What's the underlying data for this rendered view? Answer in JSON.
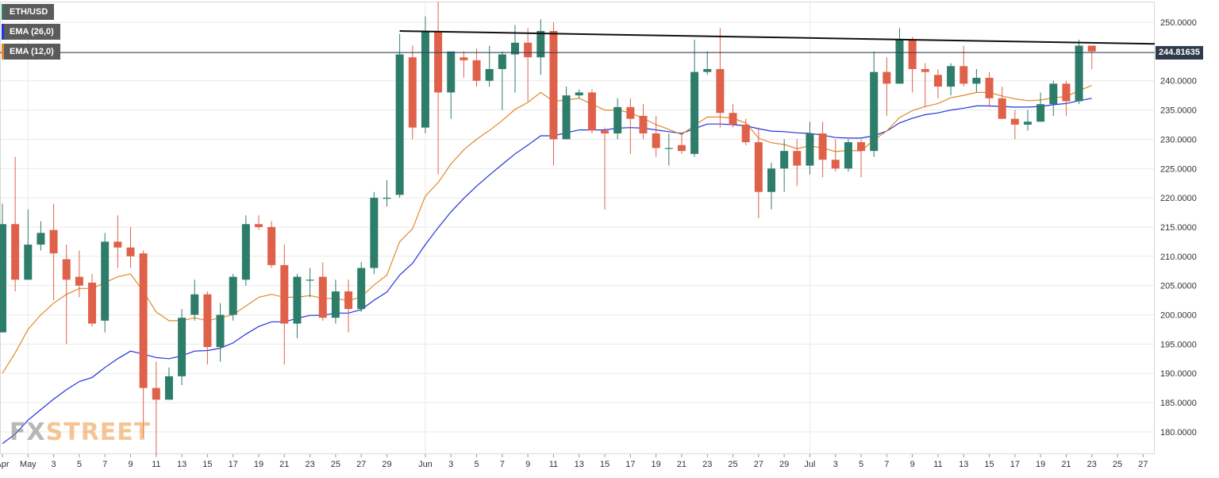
{
  "legend": [
    {
      "label": "ETH/USD",
      "color": "#2e7d6a"
    },
    {
      "label": "EMA (26,0)",
      "color": "#2233dd"
    },
    {
      "label": "EMA (12,0)",
      "color": "#e08a2a"
    }
  ],
  "watermark": {
    "left": "FX",
    "right": "STREET"
  },
  "chart_data": {
    "type": "candlestick",
    "symbol": "ETH/USD",
    "title": "",
    "ylim": [
      175.5,
      253.5
    ],
    "grid": true,
    "legend_position": "top-left",
    "last_price_label": "244.81635",
    "last_price": 244.81635,
    "colors": {
      "up": "#2e7d6a",
      "down": "#e0614a",
      "ema26": "#2233dd",
      "ema12": "#e08a2a",
      "trendline": "#111111",
      "price_line": "#2f3b4c"
    },
    "y_ticks": [
      "250.0000",
      "245.0000",
      "240.0000",
      "235.0000",
      "230.0000",
      "225.0000",
      "220.0000",
      "215.0000",
      "210.0000",
      "205.0000",
      "200.0000",
      "195.0000",
      "190.0000",
      "185.0000",
      "180.0000"
    ],
    "x_ticks": [
      {
        "i": 0,
        "label": "Apr"
      },
      {
        "i": 2,
        "label": "May"
      },
      {
        "i": 4,
        "label": "3"
      },
      {
        "i": 6,
        "label": "5"
      },
      {
        "i": 8,
        "label": "7"
      },
      {
        "i": 10,
        "label": "9"
      },
      {
        "i": 12,
        "label": "11"
      },
      {
        "i": 14,
        "label": "13"
      },
      {
        "i": 16,
        "label": "15"
      },
      {
        "i": 18,
        "label": "17"
      },
      {
        "i": 20,
        "label": "19"
      },
      {
        "i": 22,
        "label": "21"
      },
      {
        "i": 24,
        "label": "23"
      },
      {
        "i": 26,
        "label": "25"
      },
      {
        "i": 28,
        "label": "27"
      },
      {
        "i": 30,
        "label": "29"
      },
      {
        "i": 33,
        "label": "Jun"
      },
      {
        "i": 35,
        "label": "3"
      },
      {
        "i": 37,
        "label": "5"
      },
      {
        "i": 39,
        "label": "7"
      },
      {
        "i": 41,
        "label": "9"
      },
      {
        "i": 43,
        "label": "11"
      },
      {
        "i": 45,
        "label": "13"
      },
      {
        "i": 47,
        "label": "15"
      },
      {
        "i": 49,
        "label": "17"
      },
      {
        "i": 51,
        "label": "19"
      },
      {
        "i": 53,
        "label": "21"
      },
      {
        "i": 55,
        "label": "23"
      },
      {
        "i": 57,
        "label": "25"
      },
      {
        "i": 59,
        "label": "27"
      },
      {
        "i": 61,
        "label": "29"
      },
      {
        "i": 63,
        "label": "Jul"
      },
      {
        "i": 65,
        "label": "3"
      },
      {
        "i": 67,
        "label": "5"
      },
      {
        "i": 69,
        "label": "7"
      },
      {
        "i": 71,
        "label": "9"
      },
      {
        "i": 73,
        "label": "11"
      },
      {
        "i": 75,
        "label": "13"
      },
      {
        "i": 77,
        "label": "15"
      },
      {
        "i": 79,
        "label": "17"
      },
      {
        "i": 81,
        "label": "19"
      },
      {
        "i": 83,
        "label": "21"
      },
      {
        "i": 85,
        "label": "23"
      },
      {
        "i": 87,
        "label": "25"
      },
      {
        "i": 89,
        "label": "27"
      }
    ],
    "vgrid_at": [
      2,
      33,
      63
    ],
    "candles": [
      {
        "o": 197,
        "h": 219,
        "l": 197,
        "c": 215.5
      },
      {
        "o": 215.5,
        "h": 227,
        "l": 204,
        "c": 206
      },
      {
        "o": 206,
        "h": 218,
        "l": 206,
        "c": 212
      },
      {
        "o": 212,
        "h": 216,
        "l": 211,
        "c": 214
      },
      {
        "o": 214.5,
        "h": 219,
        "l": 202.5,
        "c": 210.5
      },
      {
        "o": 209.5,
        "h": 212,
        "l": 195,
        "c": 206
      },
      {
        "o": 206.5,
        "h": 211,
        "l": 203,
        "c": 205
      },
      {
        "o": 205.5,
        "h": 207,
        "l": 198,
        "c": 198.5
      },
      {
        "o": 199,
        "h": 214,
        "l": 197,
        "c": 212.5
      },
      {
        "o": 212.5,
        "h": 217,
        "l": 208,
        "c": 211.5
      },
      {
        "o": 211.5,
        "h": 215,
        "l": 208,
        "c": 210
      },
      {
        "o": 210.5,
        "h": 211,
        "l": 179,
        "c": 187.5
      },
      {
        "o": 187.5,
        "h": 192,
        "l": 176,
        "c": 185.5
      },
      {
        "o": 185.5,
        "h": 191,
        "l": 185.5,
        "c": 189.5
      },
      {
        "o": 189.5,
        "h": 201,
        "l": 188,
        "c": 199.5
      },
      {
        "o": 200,
        "h": 206,
        "l": 199,
        "c": 203.5
      },
      {
        "o": 203.5,
        "h": 204,
        "l": 191.5,
        "c": 194.5
      },
      {
        "o": 194.5,
        "h": 202,
        "l": 192,
        "c": 200
      },
      {
        "o": 200,
        "h": 207,
        "l": 199,
        "c": 206.5
      },
      {
        "o": 206,
        "h": 217,
        "l": 205,
        "c": 215.5
      },
      {
        "o": 215.5,
        "h": 217,
        "l": 214.5,
        "c": 215
      },
      {
        "o": 215,
        "h": 216,
        "l": 208,
        "c": 208.5
      },
      {
        "o": 208.5,
        "h": 212,
        "l": 191.5,
        "c": 198.5
      },
      {
        "o": 198.5,
        "h": 207,
        "l": 196,
        "c": 206.5
      },
      {
        "o": 206,
        "h": 208,
        "l": 203,
        "c": 206
      },
      {
        "o": 206.5,
        "h": 209,
        "l": 199,
        "c": 199.5
      },
      {
        "o": 199.5,
        "h": 206,
        "l": 198.5,
        "c": 204
      },
      {
        "o": 204,
        "h": 206,
        "l": 197,
        "c": 201
      },
      {
        "o": 201,
        "h": 209,
        "l": 200.5,
        "c": 208
      },
      {
        "o": 208,
        "h": 221,
        "l": 207,
        "c": 220
      },
      {
        "o": 220,
        "h": 223,
        "l": 218.5,
        "c": 220
      },
      {
        "o": 220.5,
        "h": 248,
        "l": 220,
        "c": 244.5
      },
      {
        "o": 244,
        "h": 246,
        "l": 230,
        "c": 232
      },
      {
        "o": 232,
        "h": 251,
        "l": 231,
        "c": 248.5
      },
      {
        "o": 248.5,
        "h": 253.5,
        "l": 224,
        "c": 238
      },
      {
        "o": 238,
        "h": 245,
        "l": 233.5,
        "c": 245
      },
      {
        "o": 244,
        "h": 245,
        "l": 240.5,
        "c": 243.5
      },
      {
        "o": 243.5,
        "h": 245.5,
        "l": 239,
        "c": 240
      },
      {
        "o": 240,
        "h": 246,
        "l": 239,
        "c": 242
      },
      {
        "o": 242,
        "h": 245,
        "l": 235,
        "c": 244.5
      },
      {
        "o": 244.5,
        "h": 249.5,
        "l": 238,
        "c": 246.5
      },
      {
        "o": 246.5,
        "h": 249,
        "l": 236.5,
        "c": 244
      },
      {
        "o": 244,
        "h": 250.5,
        "l": 241,
        "c": 248.5
      },
      {
        "o": 248.5,
        "h": 250,
        "l": 225.5,
        "c": 230
      },
      {
        "o": 230,
        "h": 239,
        "l": 230,
        "c": 237.5
      },
      {
        "o": 237.5,
        "h": 238.5,
        "l": 237,
        "c": 238
      },
      {
        "o": 238,
        "h": 238.5,
        "l": 231,
        "c": 231.5
      },
      {
        "o": 231.5,
        "h": 232,
        "l": 218,
        "c": 231
      },
      {
        "o": 231,
        "h": 237,
        "l": 230,
        "c": 235.5
      },
      {
        "o": 235.5,
        "h": 237,
        "l": 227.5,
        "c": 233.5
      },
      {
        "o": 234,
        "h": 236,
        "l": 230,
        "c": 231
      },
      {
        "o": 231,
        "h": 234,
        "l": 227,
        "c": 228.5
      },
      {
        "o": 228.5,
        "h": 231,
        "l": 225.5,
        "c": 228.5
      },
      {
        "o": 229,
        "h": 231,
        "l": 227.5,
        "c": 228
      },
      {
        "o": 227.5,
        "h": 247,
        "l": 227,
        "c": 241.5
      },
      {
        "o": 241.5,
        "h": 245,
        "l": 241,
        "c": 242
      },
      {
        "o": 242,
        "h": 249,
        "l": 232,
        "c": 234.5
      },
      {
        "o": 234.5,
        "h": 236,
        "l": 232,
        "c": 232.5
      },
      {
        "o": 232.5,
        "h": 233.5,
        "l": 229,
        "c": 229.5
      },
      {
        "o": 229.5,
        "h": 232,
        "l": 216.5,
        "c": 221
      },
      {
        "o": 221,
        "h": 226,
        "l": 218,
        "c": 225
      },
      {
        "o": 225,
        "h": 230,
        "l": 221,
        "c": 228
      },
      {
        "o": 228,
        "h": 230,
        "l": 222,
        "c": 225.5
      },
      {
        "o": 225.5,
        "h": 233,
        "l": 224,
        "c": 231
      },
      {
        "o": 231,
        "h": 233,
        "l": 223.5,
        "c": 226.5
      },
      {
        "o": 226.5,
        "h": 230,
        "l": 224.5,
        "c": 225
      },
      {
        "o": 225,
        "h": 230,
        "l": 224.5,
        "c": 229.5
      },
      {
        "o": 229.5,
        "h": 230,
        "l": 223.5,
        "c": 228
      },
      {
        "o": 228,
        "h": 245,
        "l": 227,
        "c": 241.5
      },
      {
        "o": 241.5,
        "h": 244,
        "l": 234,
        "c": 239.5
      },
      {
        "o": 239.5,
        "h": 249,
        "l": 239.5,
        "c": 247
      },
      {
        "o": 247,
        "h": 247.5,
        "l": 238,
        "c": 242
      },
      {
        "o": 242,
        "h": 243,
        "l": 235.5,
        "c": 241.5
      },
      {
        "o": 241,
        "h": 242,
        "l": 237,
        "c": 239
      },
      {
        "o": 239,
        "h": 243,
        "l": 237.5,
        "c": 242.5
      },
      {
        "o": 242.5,
        "h": 246,
        "l": 239,
        "c": 239.5
      },
      {
        "o": 239.5,
        "h": 242,
        "l": 238,
        "c": 240.5
      },
      {
        "o": 240.5,
        "h": 241.5,
        "l": 235.5,
        "c": 237
      },
      {
        "o": 237,
        "h": 239,
        "l": 233.5,
        "c": 233.5
      },
      {
        "o": 233.5,
        "h": 235,
        "l": 230,
        "c": 232.5
      },
      {
        "o": 232.5,
        "h": 235,
        "l": 231.5,
        "c": 233
      },
      {
        "o": 233,
        "h": 238,
        "l": 233,
        "c": 236
      },
      {
        "o": 236,
        "h": 240,
        "l": 234,
        "c": 239.5
      },
      {
        "o": 239.5,
        "h": 240,
        "l": 234,
        "c": 236.5
      },
      {
        "o": 236.5,
        "h": 247,
        "l": 236,
        "c": 246
      },
      {
        "o": 246,
        "h": 246,
        "l": 242,
        "c": 245
      }
    ],
    "ema12": [
      190,
      193.5,
      197.5,
      200,
      202,
      203.5,
      204.5,
      204.5,
      205.5,
      206.5,
      207,
      204,
      200.5,
      199,
      199,
      199.5,
      199,
      199.5,
      200,
      201.5,
      203,
      203.5,
      203,
      203,
      203.3,
      202.8,
      202.8,
      202.4,
      203.1,
      205.1,
      206.8,
      212.5,
      214.7,
      220.3,
      222.6,
      225.8,
      228.2,
      230,
      231.5,
      233.2,
      235.1,
      236.3,
      238,
      236.5,
      236.7,
      237,
      236,
      235,
      235,
      234.5,
      233.6,
      232.5,
      231.7,
      230.8,
      232.4,
      233.8,
      233.8,
      233.6,
      232.8,
      230.2,
      229.4,
      229.1,
      228.4,
      228.9,
      228.5,
      227.9,
      228.1,
      228,
      229.9,
      231.4,
      233.7,
      234.9,
      235.6,
      236.1,
      237.1,
      237.5,
      238,
      238,
      237.4,
      236.9,
      236.6,
      236.7,
      237.1,
      237.3,
      238.3,
      239.2
    ],
    "ema26": [
      178,
      179.6,
      182,
      183.8,
      185.6,
      187.2,
      188.6,
      189.3,
      191,
      192.5,
      193.8,
      193.3,
      192.7,
      192.5,
      193,
      193.8,
      193.9,
      194.3,
      195.2,
      196.7,
      198,
      198.8,
      198.8,
      199.4,
      199.9,
      199.9,
      200.3,
      200.3,
      200.9,
      202.5,
      203.9,
      206.8,
      208.8,
      212,
      214.9,
      217.6,
      219.9,
      222,
      223.9,
      225.7,
      227.5,
      229,
      230.6,
      230.6,
      231.1,
      231.6,
      231.6,
      231.6,
      231.9,
      232,
      231.9,
      231.6,
      231.3,
      231,
      231.8,
      232.6,
      232.6,
      232.5,
      232.3,
      231.8,
      231.4,
      231.3,
      231.1,
      231,
      230.7,
      230.3,
      230.2,
      230.2,
      230.6,
      231.4,
      232.8,
      233.6,
      234.2,
      234.5,
      235,
      235.3,
      235.7,
      235.7,
      235.6,
      235.5,
      235.5,
      235.6,
      235.9,
      236.1,
      236.6,
      237
    ]
  }
}
